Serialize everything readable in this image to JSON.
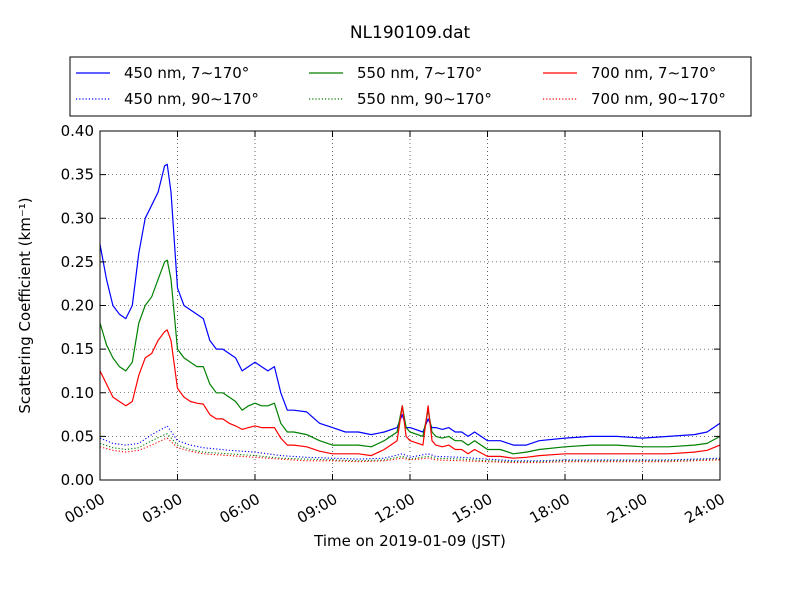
{
  "chart_data": {
    "type": "line",
    "title": "NL190109.dat",
    "xlabel": "Time on 2019-01-09 (JST)",
    "ylabel": "Scattering Coefficient (km⁻¹)",
    "x_unit": "hours",
    "xlim": [
      0,
      24
    ],
    "ylim": [
      0.0,
      0.4
    ],
    "x_ticks": [
      0,
      3,
      6,
      9,
      12,
      15,
      18,
      21,
      24
    ],
    "x_tick_labels": [
      "00:00",
      "03:00",
      "06:00",
      "09:00",
      "12:00",
      "15:00",
      "18:00",
      "21:00",
      "24:00"
    ],
    "y_ticks": [
      0.0,
      0.05,
      0.1,
      0.15,
      0.2,
      0.25,
      0.3,
      0.35,
      0.4
    ],
    "y_tick_labels": [
      "0.00",
      "0.05",
      "0.10",
      "0.15",
      "0.20",
      "0.25",
      "0.30",
      "0.35",
      "0.40"
    ],
    "grid": true,
    "legend_position": "top, above plot, 3 columns",
    "series": [
      {
        "name": "450 nm, 7∼170°",
        "color": "#0000ff",
        "style": "solid",
        "x": [
          0,
          0.25,
          0.5,
          0.75,
          1.0,
          1.25,
          1.5,
          1.75,
          2.0,
          2.25,
          2.5,
          2.6,
          2.75,
          3.0,
          3.25,
          3.5,
          3.75,
          4.0,
          4.25,
          4.5,
          4.75,
          5.0,
          5.25,
          5.5,
          5.75,
          6.0,
          6.25,
          6.5,
          6.75,
          7.0,
          7.25,
          7.5,
          8.0,
          8.5,
          9.0,
          9.5,
          10.0,
          10.5,
          11.0,
          11.5,
          11.7,
          11.85,
          12.0,
          12.5,
          12.7,
          12.85,
          13.0,
          13.25,
          13.5,
          13.75,
          14.0,
          14.25,
          14.5,
          15.0,
          15.5,
          16.0,
          16.5,
          17.0,
          18.0,
          19.0,
          20.0,
          21.0,
          22.0,
          23.0,
          23.5,
          24.0
        ],
        "y": [
          0.27,
          0.23,
          0.2,
          0.19,
          0.185,
          0.2,
          0.26,
          0.3,
          0.315,
          0.33,
          0.36,
          0.362,
          0.33,
          0.22,
          0.2,
          0.195,
          0.19,
          0.185,
          0.16,
          0.15,
          0.15,
          0.145,
          0.14,
          0.125,
          0.13,
          0.135,
          0.13,
          0.125,
          0.13,
          0.1,
          0.08,
          0.08,
          0.078,
          0.065,
          0.06,
          0.055,
          0.055,
          0.052,
          0.055,
          0.06,
          0.075,
          0.06,
          0.06,
          0.055,
          0.07,
          0.06,
          0.06,
          0.058,
          0.06,
          0.055,
          0.055,
          0.05,
          0.055,
          0.045,
          0.045,
          0.04,
          0.04,
          0.045,
          0.048,
          0.05,
          0.05,
          0.048,
          0.05,
          0.052,
          0.055,
          0.065
        ]
      },
      {
        "name": "550 nm, 7∼170°",
        "color": "#008000",
        "style": "solid",
        "x": [
          0,
          0.25,
          0.5,
          0.75,
          1.0,
          1.25,
          1.5,
          1.75,
          2.0,
          2.25,
          2.5,
          2.6,
          2.75,
          3.0,
          3.25,
          3.5,
          3.75,
          4.0,
          4.25,
          4.5,
          4.75,
          5.0,
          5.25,
          5.5,
          5.75,
          6.0,
          6.25,
          6.5,
          6.75,
          7.0,
          7.25,
          7.5,
          8.0,
          8.5,
          9.0,
          9.5,
          10.0,
          10.5,
          11.0,
          11.5,
          11.7,
          11.85,
          12.0,
          12.5,
          12.7,
          12.85,
          13.0,
          13.25,
          13.5,
          13.75,
          14.0,
          14.25,
          14.5,
          15.0,
          15.5,
          16.0,
          16.5,
          17.0,
          18.0,
          19.0,
          20.0,
          21.0,
          22.0,
          23.0,
          23.5,
          24.0
        ],
        "y": [
          0.18,
          0.155,
          0.14,
          0.13,
          0.125,
          0.135,
          0.18,
          0.2,
          0.21,
          0.23,
          0.25,
          0.252,
          0.23,
          0.15,
          0.14,
          0.135,
          0.13,
          0.13,
          0.11,
          0.1,
          0.1,
          0.095,
          0.09,
          0.08,
          0.085,
          0.088,
          0.085,
          0.085,
          0.088,
          0.065,
          0.055,
          0.055,
          0.052,
          0.045,
          0.04,
          0.04,
          0.04,
          0.038,
          0.045,
          0.055,
          0.085,
          0.06,
          0.055,
          0.05,
          0.08,
          0.055,
          0.05,
          0.048,
          0.05,
          0.045,
          0.045,
          0.04,
          0.045,
          0.035,
          0.035,
          0.03,
          0.032,
          0.035,
          0.038,
          0.04,
          0.04,
          0.038,
          0.038,
          0.04,
          0.042,
          0.05
        ]
      },
      {
        "name": "700 nm, 7∼170°",
        "color": "#ff0000",
        "style": "solid",
        "x": [
          0,
          0.25,
          0.5,
          0.75,
          1.0,
          1.25,
          1.5,
          1.75,
          2.0,
          2.25,
          2.5,
          2.6,
          2.75,
          3.0,
          3.25,
          3.5,
          3.75,
          4.0,
          4.25,
          4.5,
          4.75,
          5.0,
          5.25,
          5.5,
          5.75,
          6.0,
          6.25,
          6.5,
          6.75,
          7.0,
          7.25,
          7.5,
          8.0,
          8.5,
          9.0,
          9.5,
          10.0,
          10.5,
          11.0,
          11.5,
          11.7,
          11.85,
          12.0,
          12.5,
          12.7,
          12.85,
          13.0,
          13.25,
          13.5,
          13.75,
          14.0,
          14.25,
          14.5,
          15.0,
          15.5,
          16.0,
          16.5,
          17.0,
          18.0,
          19.0,
          20.0,
          21.0,
          22.0,
          23.0,
          23.5,
          24.0
        ],
        "y": [
          0.125,
          0.11,
          0.095,
          0.09,
          0.085,
          0.09,
          0.12,
          0.14,
          0.145,
          0.16,
          0.17,
          0.172,
          0.16,
          0.105,
          0.095,
          0.09,
          0.088,
          0.087,
          0.075,
          0.07,
          0.07,
          0.065,
          0.062,
          0.058,
          0.06,
          0.062,
          0.06,
          0.06,
          0.06,
          0.048,
          0.04,
          0.04,
          0.038,
          0.033,
          0.03,
          0.03,
          0.03,
          0.028,
          0.035,
          0.045,
          0.085,
          0.05,
          0.045,
          0.04,
          0.085,
          0.045,
          0.04,
          0.038,
          0.04,
          0.035,
          0.035,
          0.03,
          0.035,
          0.027,
          0.027,
          0.025,
          0.026,
          0.028,
          0.03,
          0.03,
          0.03,
          0.03,
          0.03,
          0.032,
          0.034,
          0.04
        ]
      },
      {
        "name": "450 nm, 90∼170°",
        "color": "#0000ff",
        "style": "dotted",
        "x": [
          0,
          0.5,
          1.0,
          1.5,
          2.0,
          2.5,
          2.6,
          3.0,
          3.5,
          4.0,
          5.0,
          6.0,
          7.0,
          8.0,
          9.0,
          10.0,
          11.0,
          11.7,
          12.0,
          12.7,
          13.0,
          14.0,
          15.0,
          16.0,
          17.0,
          18.0,
          19.0,
          20.0,
          21.0,
          22.0,
          23.0,
          24.0
        ],
        "y": [
          0.048,
          0.042,
          0.04,
          0.042,
          0.052,
          0.06,
          0.062,
          0.045,
          0.04,
          0.037,
          0.034,
          0.032,
          0.028,
          0.026,
          0.025,
          0.024,
          0.025,
          0.03,
          0.026,
          0.03,
          0.027,
          0.026,
          0.024,
          0.022,
          0.022,
          0.023,
          0.023,
          0.023,
          0.023,
          0.023,
          0.024,
          0.025
        ]
      },
      {
        "name": "550 nm, 90∼170°",
        "color": "#008000",
        "style": "dotted",
        "x": [
          0,
          0.5,
          1.0,
          1.5,
          2.0,
          2.5,
          2.6,
          3.0,
          3.5,
          4.0,
          5.0,
          6.0,
          7.0,
          8.0,
          9.0,
          10.0,
          11.0,
          11.7,
          12.0,
          12.7,
          13.0,
          14.0,
          15.0,
          16.0,
          17.0,
          18.0,
          19.0,
          20.0,
          21.0,
          22.0,
          23.0,
          24.0
        ],
        "y": [
          0.042,
          0.037,
          0.035,
          0.037,
          0.045,
          0.052,
          0.053,
          0.04,
          0.035,
          0.032,
          0.03,
          0.028,
          0.025,
          0.024,
          0.023,
          0.022,
          0.023,
          0.027,
          0.024,
          0.027,
          0.025,
          0.024,
          0.022,
          0.021,
          0.021,
          0.022,
          0.022,
          0.022,
          0.022,
          0.022,
          0.023,
          0.024
        ]
      },
      {
        "name": "700 nm, 90∼170°",
        "color": "#ff0000",
        "style": "dotted",
        "x": [
          0,
          0.5,
          1.0,
          1.5,
          2.0,
          2.5,
          2.6,
          3.0,
          3.5,
          4.0,
          5.0,
          6.0,
          7.0,
          8.0,
          9.0,
          10.0,
          11.0,
          11.7,
          12.0,
          12.7,
          13.0,
          14.0,
          15.0,
          16.0,
          17.0,
          18.0,
          19.0,
          20.0,
          21.0,
          22.0,
          23.0,
          24.0
        ],
        "y": [
          0.038,
          0.034,
          0.032,
          0.034,
          0.04,
          0.047,
          0.048,
          0.037,
          0.033,
          0.03,
          0.028,
          0.026,
          0.024,
          0.022,
          0.022,
          0.021,
          0.022,
          0.025,
          0.023,
          0.025,
          0.023,
          0.022,
          0.021,
          0.02,
          0.02,
          0.021,
          0.021,
          0.021,
          0.021,
          0.021,
          0.022,
          0.023
        ]
      }
    ]
  }
}
